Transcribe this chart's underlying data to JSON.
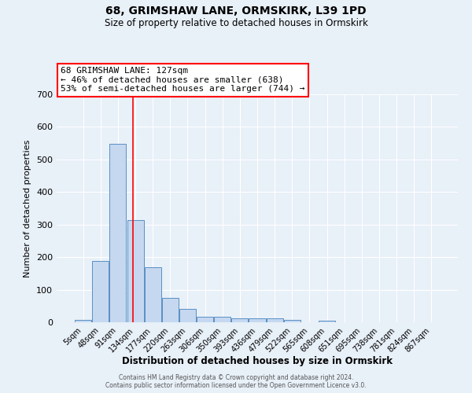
{
  "title": "68, GRIMSHAW LANE, ORMSKIRK, L39 1PD",
  "subtitle": "Size of property relative to detached houses in Ormskirk",
  "xlabel": "Distribution of detached houses by size in Ormskirk",
  "ylabel": "Number of detached properties",
  "bar_labels": [
    "5sqm",
    "48sqm",
    "91sqm",
    "134sqm",
    "177sqm",
    "220sqm",
    "263sqm",
    "306sqm",
    "350sqm",
    "393sqm",
    "436sqm",
    "479sqm",
    "522sqm",
    "565sqm",
    "608sqm",
    "651sqm",
    "695sqm",
    "738sqm",
    "781sqm",
    "824sqm",
    "867sqm"
  ],
  "bar_heights": [
    8,
    188,
    548,
    315,
    168,
    75,
    40,
    18,
    18,
    12,
    12,
    12,
    8,
    0,
    5,
    0,
    0,
    0,
    0,
    0,
    0
  ],
  "bar_color": "#c5d8f0",
  "bar_edge_color": "#5a8fc3",
  "vline_x": 2.88,
  "vline_color": "red",
  "ylim": [
    0,
    700
  ],
  "yticks": [
    0,
    100,
    200,
    300,
    400,
    500,
    600,
    700
  ],
  "annotation_title": "68 GRIMSHAW LANE: 127sqm",
  "annotation_line1": "← 46% of detached houses are smaller (638)",
  "annotation_line2": "53% of semi-detached houses are larger (744) →",
  "annotation_box_color": "#ffffff",
  "annotation_box_edge": "red",
  "bg_color": "#e8f0f8",
  "plot_bg_color": "#e8f0f8",
  "grid_color": "#ffffff",
  "footer_line1": "Contains HM Land Registry data © Crown copyright and database right 2024.",
  "footer_line2": "Contains public sector information licensed under the Open Government Licence v3.0."
}
